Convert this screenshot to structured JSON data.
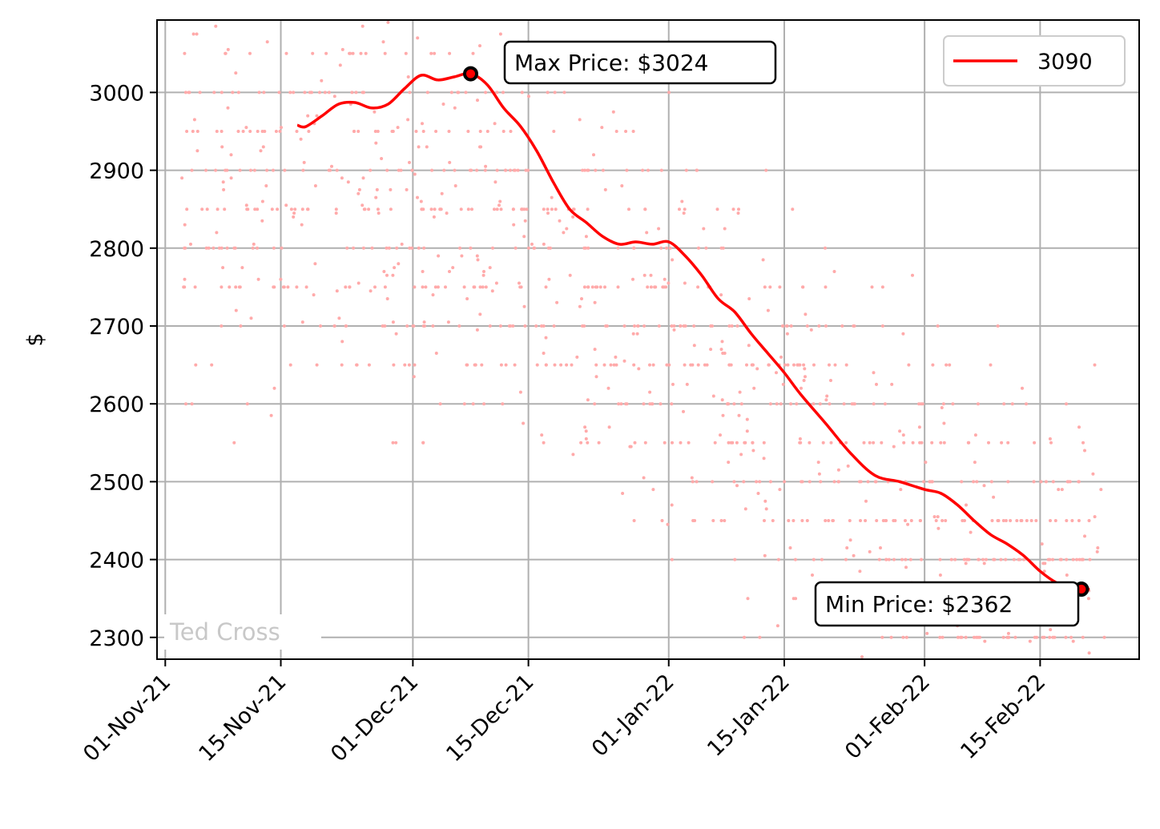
{
  "chart_data": {
    "type": "line",
    "title": "",
    "xlabel": "",
    "ylabel": "$",
    "x_ticks": [
      "01-Nov-21",
      "15-Nov-21",
      "01-Dec-21",
      "15-Dec-21",
      "01-Jan-22",
      "15-Jan-22",
      "01-Feb-22",
      "15-Feb-22"
    ],
    "y_ticks": [
      2300,
      2400,
      2500,
      2600,
      2700,
      2800,
      2900,
      3000
    ],
    "xlim": [
      "2021-10-31",
      "2022-02-27"
    ],
    "ylim": [
      2272,
      3093
    ],
    "grid": true,
    "legend_position": "top-right",
    "line_color": "#ff0000",
    "scatter_color": "#ffaaaa",
    "series": [
      {
        "name": "3090",
        "x": [
          "2021-11-17",
          "2021-11-18",
          "2021-11-20",
          "2021-11-22",
          "2021-11-24",
          "2021-11-26",
          "2021-11-28",
          "2021-11-30",
          "2021-12-02",
          "2021-12-04",
          "2021-12-06",
          "2021-12-08",
          "2021-12-10",
          "2021-12-12",
          "2021-12-14",
          "2021-12-16",
          "2021-12-18",
          "2021-12-20",
          "2021-12-22",
          "2021-12-24",
          "2021-12-26",
          "2021-12-28",
          "2021-12-30",
          "2022-01-01",
          "2022-01-03",
          "2022-01-05",
          "2022-01-07",
          "2022-01-09",
          "2022-01-11",
          "2022-01-13",
          "2022-01-15",
          "2022-01-17",
          "2022-01-20",
          "2022-01-23",
          "2022-01-26",
          "2022-01-29",
          "2022-02-01",
          "2022-02-03",
          "2022-02-05",
          "2022-02-07",
          "2022-02-09",
          "2022-02-11",
          "2022-02-13",
          "2022-02-15",
          "2022-02-17",
          "2022-02-19",
          "2022-02-20",
          "2022-02-21"
        ],
        "values": [
          2958,
          2956,
          2970,
          2985,
          2987,
          2980,
          2985,
          3005,
          3022,
          3016,
          3020,
          3024,
          3010,
          2980,
          2957,
          2925,
          2885,
          2850,
          2833,
          2815,
          2805,
          2808,
          2805,
          2808,
          2790,
          2765,
          2735,
          2718,
          2690,
          2665,
          2640,
          2612,
          2575,
          2537,
          2508,
          2500,
          2490,
          2485,
          2470,
          2450,
          2432,
          2420,
          2405,
          2385,
          2370,
          2362,
          2362,
          2362
        ]
      }
    ],
    "max_point": {
      "x": "2021-12-08",
      "y": 3024
    },
    "min_point": {
      "x": "2022-02-20",
      "y": 2362
    },
    "annotations": {
      "max_label": "Max Price: $3024",
      "min_label": "Min Price: $2362"
    },
    "watermark": "Ted Cross"
  }
}
